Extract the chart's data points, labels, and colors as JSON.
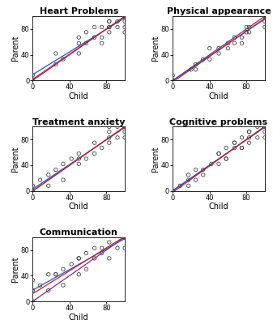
{
  "panels": [
    {
      "title": "Heart Problems",
      "child": [
        0,
        0,
        25,
        33,
        50,
        50,
        58,
        67,
        75,
        75,
        83,
        83,
        83,
        83,
        92,
        92,
        100,
        100,
        100,
        100,
        100,
        100,
        100,
        100,
        100,
        100,
        100,
        100,
        100,
        100,
        100,
        58,
        67,
        75,
        83,
        25,
        50
      ],
      "parent": [
        0,
        8,
        25,
        33,
        42,
        58,
        58,
        67,
        58,
        67,
        75,
        83,
        83,
        92,
        83,
        92,
        75,
        83,
        92,
        100,
        100,
        100,
        100,
        100,
        100,
        100,
        100,
        100,
        100,
        100,
        100,
        75,
        83,
        83,
        92,
        42,
        67
      ],
      "xlim": [
        0,
        100
      ],
      "ylim": [
        0,
        100
      ],
      "xticks": [
        0,
        40,
        80
      ],
      "yticks": [
        0,
        40,
        80
      ]
    },
    {
      "title": "Physical appearance",
      "child": [
        0,
        0,
        25,
        33,
        40,
        50,
        60,
        67,
        75,
        80,
        80,
        83,
        100,
        100,
        100,
        100,
        100,
        100,
        100,
        100,
        100,
        0,
        25,
        50,
        75,
        83,
        20,
        40,
        60,
        67
      ],
      "parent": [
        0,
        8,
        17,
        33,
        50,
        42,
        50,
        67,
        58,
        75,
        83,
        75,
        83,
        92,
        100,
        100,
        100,
        100,
        100,
        100,
        100,
        0,
        25,
        50,
        67,
        83,
        17,
        33,
        58,
        58
      ],
      "xlim": [
        0,
        100
      ],
      "ylim": [
        0,
        100
      ],
      "xticks": [
        0,
        40,
        80
      ],
      "yticks": [
        0,
        40,
        80
      ]
    },
    {
      "title": "Treatment anxiety",
      "child": [
        0,
        0,
        0,
        8,
        17,
        17,
        33,
        33,
        50,
        50,
        50,
        58,
        67,
        67,
        75,
        83,
        83,
        83,
        83,
        92,
        92,
        100,
        100,
        100,
        100,
        100,
        100,
        100,
        100,
        100,
        100,
        100,
        100,
        100,
        100,
        25,
        42
      ],
      "parent": [
        0,
        0,
        8,
        17,
        8,
        25,
        17,
        42,
        42,
        50,
        58,
        50,
        58,
        75,
        67,
        75,
        83,
        92,
        100,
        83,
        100,
        83,
        92,
        100,
        100,
        100,
        100,
        100,
        100,
        100,
        100,
        100,
        100,
        100,
        100,
        33,
        50
      ],
      "xlim": [
        0,
        100
      ],
      "ylim": [
        0,
        100
      ],
      "xticks": [
        0,
        40,
        80
      ],
      "yticks": [
        0,
        40,
        80
      ]
    },
    {
      "title": "Cognitive problems",
      "child": [
        0,
        8,
        17,
        17,
        25,
        33,
        42,
        50,
        50,
        58,
        58,
        67,
        67,
        75,
        75,
        83,
        83,
        83,
        92,
        92,
        100,
        100,
        100,
        100,
        100,
        100,
        100,
        100,
        100,
        100,
        100,
        25,
        50,
        67,
        83,
        0,
        17,
        33,
        58,
        75
      ],
      "parent": [
        0,
        8,
        17,
        25,
        17,
        33,
        42,
        42,
        58,
        50,
        67,
        67,
        75,
        67,
        83,
        75,
        83,
        92,
        83,
        100,
        83,
        92,
        100,
        100,
        100,
        100,
        100,
        100,
        100,
        100,
        100,
        33,
        58,
        75,
        92,
        0,
        8,
        25,
        50,
        67
      ],
      "xlim": [
        0,
        100
      ],
      "ylim": [
        0,
        100
      ],
      "xticks": [
        0,
        40,
        80
      ],
      "yticks": [
        0,
        40,
        80
      ]
    },
    {
      "title": "Communication",
      "child": [
        0,
        0,
        0,
        8,
        17,
        17,
        25,
        33,
        33,
        42,
        50,
        50,
        58,
        58,
        67,
        67,
        75,
        83,
        83,
        92,
        100,
        100,
        100,
        100,
        100,
        100,
        100,
        100,
        100,
        100,
        100,
        25,
        50,
        75
      ],
      "parent": [
        0,
        17,
        33,
        25,
        17,
        42,
        42,
        25,
        50,
        58,
        42,
        67,
        50,
        75,
        67,
        83,
        75,
        67,
        92,
        83,
        83,
        100,
        100,
        100,
        100,
        100,
        100,
        100,
        100,
        100,
        100,
        42,
        67,
        83
      ],
      "xlim": [
        0,
        100
      ],
      "ylim": [
        0,
        100
      ],
      "xticks": [
        0,
        40,
        80
      ],
      "yticks": [
        0,
        40,
        80
      ]
    }
  ],
  "marker_size": 10,
  "marker_color": "none",
  "marker_edgecolor": "#444444",
  "marker_linewidth": 0.6,
  "line_identity_color": "#7B2D8B",
  "line_regression_color": "#CC2222",
  "line_blue_color": "#2255CC",
  "background_color": "#ffffff",
  "tick_fontsize": 6,
  "label_fontsize": 7,
  "title_fontsize": 8
}
